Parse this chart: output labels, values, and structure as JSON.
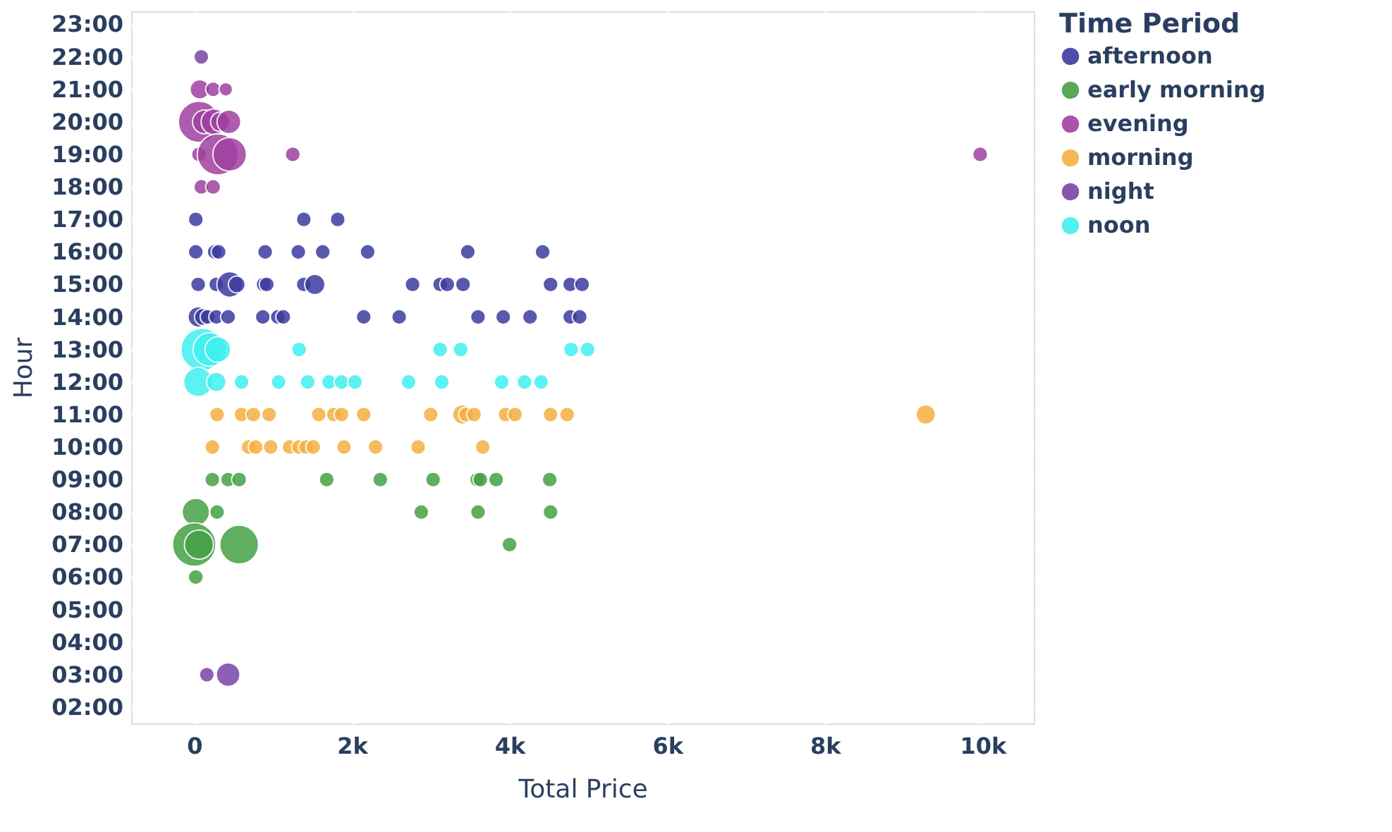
{
  "chart_data": {
    "type": "bubble",
    "xlabel": "Total Price",
    "ylabel": "Hour",
    "legend_title": "Time Period",
    "xlim": [
      -800,
      10650
    ],
    "ylim": [
      1.5,
      23.4
    ],
    "xticks": [
      {
        "value": 0,
        "label": "0"
      },
      {
        "value": 2000,
        "label": "2k"
      },
      {
        "value": 4000,
        "label": "4k"
      },
      {
        "value": 6000,
        "label": "6k"
      },
      {
        "value": 8000,
        "label": "8k"
      },
      {
        "value": 10000,
        "label": "10k"
      }
    ],
    "yticks": [
      {
        "value": 2,
        "label": "02:00"
      },
      {
        "value": 3,
        "label": "03:00"
      },
      {
        "value": 4,
        "label": "04:00"
      },
      {
        "value": 5,
        "label": "05:00"
      },
      {
        "value": 6,
        "label": "06:00"
      },
      {
        "value": 7,
        "label": "07:00"
      },
      {
        "value": 8,
        "label": "08:00"
      },
      {
        "value": 9,
        "label": "09:00"
      },
      {
        "value": 10,
        "label": "10:00"
      },
      {
        "value": 11,
        "label": "11:00"
      },
      {
        "value": 12,
        "label": "12:00"
      },
      {
        "value": 13,
        "label": "13:00"
      },
      {
        "value": 14,
        "label": "14:00"
      },
      {
        "value": 15,
        "label": "15:00"
      },
      {
        "value": 16,
        "label": "16:00"
      },
      {
        "value": 17,
        "label": "17:00"
      },
      {
        "value": 18,
        "label": "18:00"
      },
      {
        "value": 19,
        "label": "19:00"
      },
      {
        "value": 20,
        "label": "20:00"
      },
      {
        "value": 21,
        "label": "21:00"
      },
      {
        "value": 22,
        "label": "22:00"
      },
      {
        "value": 23,
        "label": "23:00"
      }
    ],
    "grid": true,
    "legend": "top right",
    "series": [
      {
        "name": "afternoon",
        "color": "#3c3ca0",
        "x": [
          20,
          1390,
          1820,
          20,
          260,
          310,
          900,
          1320,
          1630,
          2200,
          3470,
          4420,
          50,
          280,
          450,
          540,
          880,
          920,
          1390,
          1530,
          2770,
          3120,
          3210,
          3410,
          4520,
          4770,
          4920,
          50,
          110,
          170,
          280,
          430,
          870,
          1060,
          1130,
          2150,
          2600,
          3600,
          3920,
          4260,
          4770,
          4890
        ],
        "values": [
          17,
          17,
          17,
          16,
          16,
          16,
          16,
          16,
          16,
          16,
          16,
          16,
          15,
          15,
          15,
          15,
          15,
          15,
          15,
          15,
          15,
          15,
          15,
          15,
          15,
          15,
          15,
          14,
          14,
          14,
          14,
          14,
          14,
          14,
          14,
          14,
          14,
          14,
          14,
          14,
          14,
          14
        ],
        "sizes": [
          0.12,
          0.12,
          0.12,
          0.12,
          0.12,
          0.12,
          0.12,
          0.12,
          0.12,
          0.12,
          0.12,
          0.12,
          0.12,
          0.12,
          0.35,
          0.15,
          0.12,
          0.12,
          0.12,
          0.22,
          0.12,
          0.12,
          0.12,
          0.12,
          0.12,
          0.12,
          0.12,
          0.22,
          0.15,
          0.12,
          0.12,
          0.12,
          0.12,
          0.12,
          0.12,
          0.12,
          0.12,
          0.12,
          0.12,
          0.12,
          0.12,
          0.12
        ]
      },
      {
        "name": "early morning",
        "color": "#45a045",
        "x": [
          230,
          430,
          570,
          1680,
          2360,
          3030,
          3590,
          3630,
          3830,
          4510,
          20,
          290,
          2880,
          3600,
          4520,
          0,
          60,
          570,
          4000,
          20
        ],
        "values": [
          9,
          9,
          9,
          9,
          9,
          9,
          9,
          9,
          9,
          9,
          8,
          8,
          8,
          8,
          8,
          7,
          7,
          7,
          7,
          6
        ],
        "sizes": [
          0.12,
          0.12,
          0.12,
          0.12,
          0.12,
          0.12,
          0.12,
          0.12,
          0.12,
          0.12,
          0.4,
          0.12,
          0.12,
          0.12,
          0.12,
          1,
          0.45,
          0.8,
          0.12,
          0.12
        ]
      },
      {
        "name": "evening",
        "color": "#a040a0",
        "x": [
          70,
          240,
          400,
          60,
          130,
          250,
          330,
          440,
          60,
          300,
          450,
          1250,
          9970,
          90,
          240
        ],
        "values": [
          21,
          21,
          21,
          20,
          20,
          20,
          20,
          20,
          19,
          19,
          19,
          19,
          19,
          18,
          18
        ],
        "sizes": [
          0.2,
          0.12,
          0.1,
          0.9,
          0.3,
          0.35,
          0.2,
          0.3,
          0.12,
          0.9,
          0.6,
          0.12,
          0.12,
          0.12,
          0.12
        ]
      },
      {
        "name": "morning",
        "color": "#f5b041",
        "x": [
          290,
          600,
          750,
          950,
          1580,
          1770,
          1870,
          2150,
          3000,
          3400,
          3450,
          3550,
          3950,
          4070,
          4520,
          4730,
          9280,
          230,
          690,
          780,
          970,
          1210,
          1330,
          1420,
          1510,
          1900,
          2300,
          2840,
          3660
        ],
        "values": [
          11,
          11,
          11,
          11,
          11,
          11,
          11,
          11,
          11,
          11,
          11,
          11,
          11,
          11,
          11,
          11,
          11,
          10,
          10,
          10,
          10,
          10,
          10,
          10,
          10,
          10,
          10,
          10,
          10
        ],
        "sizes": [
          0.12,
          0.12,
          0.12,
          0.12,
          0.12,
          0.12,
          0.12,
          0.12,
          0.12,
          0.2,
          0.12,
          0.12,
          0.12,
          0.12,
          0.12,
          0.12,
          0.2,
          0.12,
          0.12,
          0.12,
          0.12,
          0.12,
          0.12,
          0.12,
          0.12,
          0.12,
          0.12,
          0.12,
          0.12
        ]
      },
      {
        "name": "night",
        "color": "#7a44a8",
        "x": [
          90,
          160,
          430
        ],
        "values": [
          22,
          3,
          3
        ],
        "sizes": [
          0.12,
          0.12,
          0.3
        ]
      },
      {
        "name": "noon",
        "color": "#40f0f0",
        "x": [
          100,
          200,
          300,
          1330,
          3120,
          3380,
          4780,
          4990,
          50,
          280,
          600,
          1070,
          1440,
          1710,
          1870,
          2040,
          2720,
          3140,
          3900,
          4190,
          4400
        ],
        "values": [
          13,
          13,
          13,
          13,
          13,
          13,
          13,
          13,
          12,
          12,
          12,
          12,
          12,
          12,
          12,
          12,
          12,
          12,
          12,
          12,
          12
        ],
        "sizes": [
          0.95,
          0.6,
          0.35,
          0.12,
          0.12,
          0.12,
          0.12,
          0.12,
          0.45,
          0.2,
          0.12,
          0.12,
          0.12,
          0.12,
          0.12,
          0.12,
          0.12,
          0.12,
          0.12,
          0.12,
          0.12
        ]
      }
    ]
  }
}
